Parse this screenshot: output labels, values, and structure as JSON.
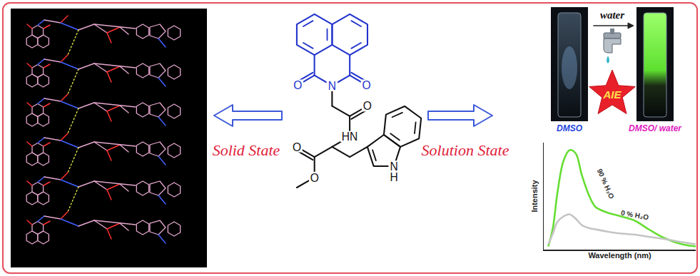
{
  "left_panel": {
    "caption": "Solid State"
  },
  "center_molecule": {
    "atom_labels": [
      "O",
      "O",
      "N",
      "O",
      "HN",
      "O",
      "O",
      "N",
      "H"
    ]
  },
  "right_panel": {
    "caption": "Solution State",
    "arrow_label": "water",
    "vial_before": "DMSO",
    "vial_after": "DMSO/ water",
    "badge": "AIE"
  },
  "chart_data": {
    "type": "line",
    "x_label": "Wavelength (nm)",
    "y_label": "Intensity",
    "x": [
      3,
      6,
      9,
      13,
      17,
      21,
      25,
      30,
      34,
      41,
      51,
      60,
      69,
      79,
      91,
      100
    ],
    "xlim": [
      0,
      100
    ],
    "ylim": [
      0,
      100
    ],
    "tick_labels": false,
    "grid": false,
    "series": [
      {
        "name": "90 % H₂O",
        "color": "#66dd33",
        "values": [
          3,
          20,
          53,
          83,
          93,
          90,
          70,
          50,
          40,
          35,
          31,
          27,
          19,
          11,
          5,
          3
        ]
      },
      {
        "name": "0 % H₂O",
        "color": "#c4c4c4",
        "values": [
          5,
          15,
          26,
          31,
          33,
          29,
          23,
          20,
          19,
          17,
          15,
          14,
          12,
          10,
          7,
          5
        ]
      }
    ]
  }
}
